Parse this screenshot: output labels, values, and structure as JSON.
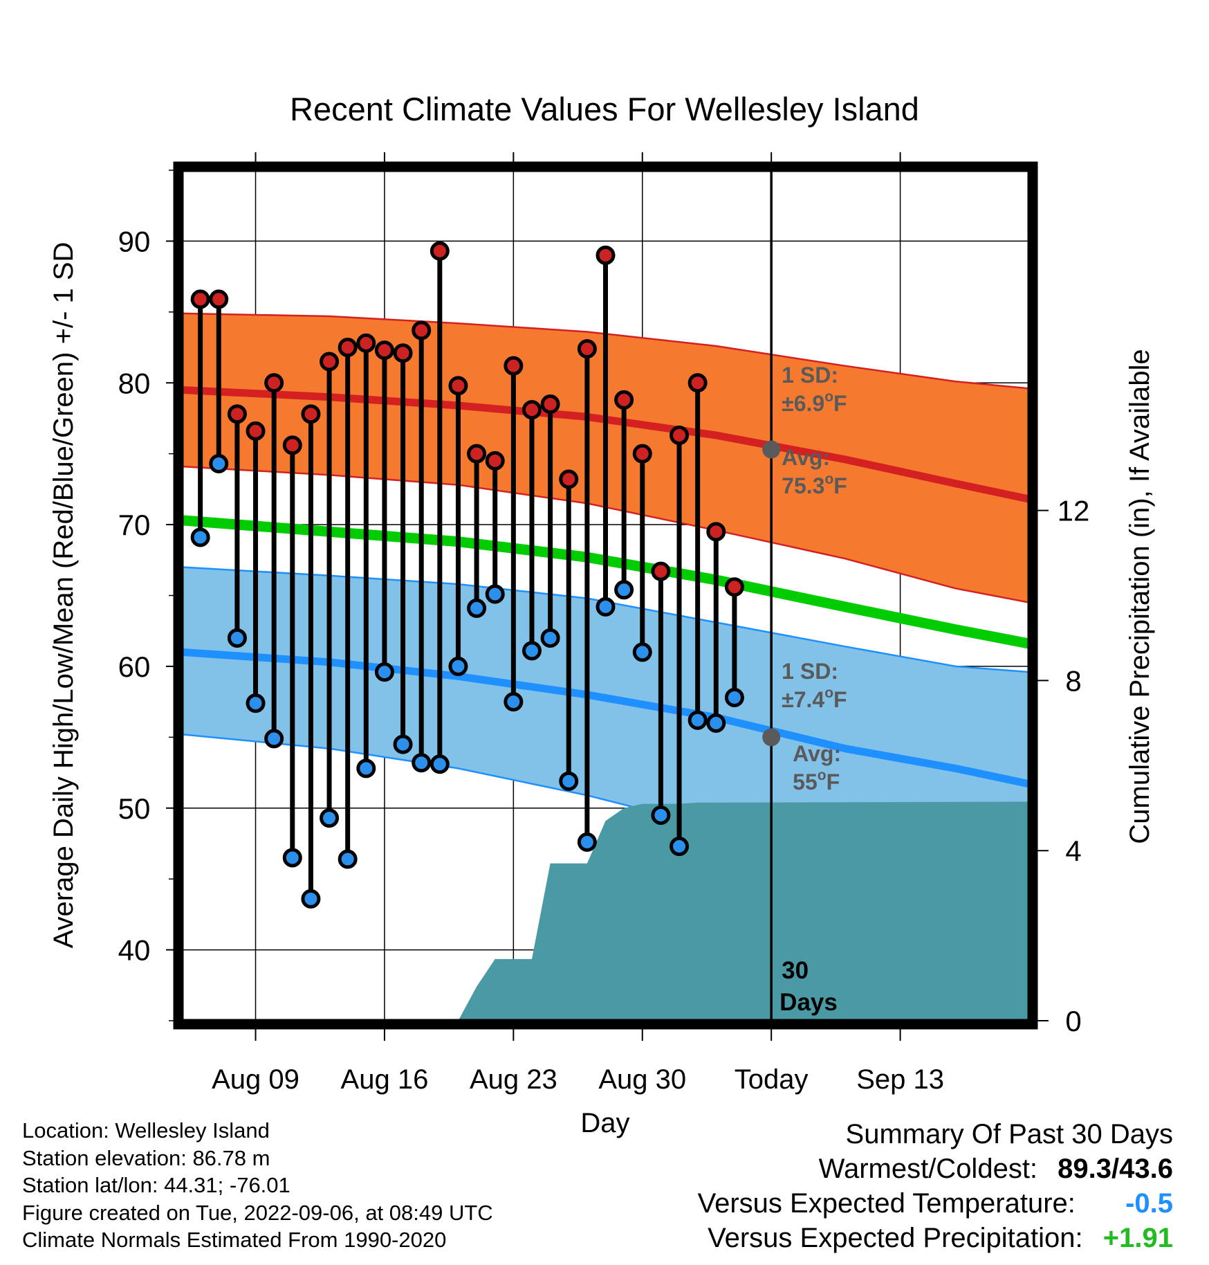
{
  "chart_data": {
    "type": "line",
    "title": "Recent Climate Values For Wellesley Island",
    "xlabel": "Day",
    "ylabel": "Average Daily High/Low/Mean (Red/Blue/Green) +/- 1 SD",
    "y2label": "Cumulative Precipitation (in), If Available",
    "ylim": [
      35,
      95
    ],
    "y2lim": [
      0,
      20
    ],
    "xlim": [
      "2022-08-05",
      "2022-09-20"
    ],
    "yticks": [
      40,
      50,
      60,
      70,
      80,
      90
    ],
    "y2ticks": [
      0,
      4,
      8,
      12
    ],
    "xticks": [
      {
        "date": "2022-08-09",
        "label": "Aug 09"
      },
      {
        "date": "2022-08-16",
        "label": "Aug 16"
      },
      {
        "date": "2022-08-23",
        "label": "Aug 23"
      },
      {
        "date": "2022-08-30",
        "label": "Aug 30"
      },
      {
        "date": "2022-09-06",
        "label": "Today"
      },
      {
        "date": "2022-09-13",
        "label": "Sep 13"
      }
    ],
    "today": "2022-09-06",
    "today_label": [
      "30",
      "Days"
    ],
    "grid": true,
    "colors": {
      "high_band": "#f57a30",
      "high_line": "#d42020",
      "low_band": "#82c1e8",
      "low_line": "#1e90ff",
      "mean_line": "#00cc00",
      "precip": "#4a9aa5",
      "high_marker": "#cc2222",
      "low_marker": "#2a90ec",
      "annotation": "#5a5a5a"
    },
    "normals": {
      "dates": [
        "2022-08-05",
        "2022-08-13",
        "2022-08-20",
        "2022-08-27",
        "2022-09-03",
        "2022-09-10",
        "2022-09-16",
        "2022-09-20"
      ],
      "high_avg": [
        79.5,
        79.0,
        78.4,
        77.6,
        76.3,
        74.6,
        72.9,
        71.8
      ],
      "high_sd_upper": [
        84.9,
        84.7,
        84.2,
        83.6,
        82.6,
        81.2,
        80.1,
        79.6
      ],
      "high_sd_lower": [
        74.1,
        73.5,
        72.8,
        71.5,
        69.6,
        67.6,
        65.5,
        64.5
      ],
      "mean": [
        70.3,
        69.5,
        68.8,
        67.7,
        66.1,
        64.2,
        62.6,
        61.6
      ],
      "low_avg": [
        61.0,
        60.3,
        59.3,
        58.0,
        56.4,
        54.2,
        52.8,
        51.7
      ],
      "low_sd_upper": [
        67.0,
        66.4,
        65.8,
        64.8,
        63.1,
        61.4,
        60.0,
        59.6
      ],
      "low_sd_lower": [
        55.2,
        54.2,
        52.8,
        50.9,
        48.6,
        46.5,
        44.3,
        42.8
      ]
    },
    "series": [
      {
        "name": "High",
        "values": [
          85.9,
          85.9,
          77.8,
          76.6,
          80.0,
          75.6,
          77.8,
          81.5,
          82.5,
          82.8,
          82.3,
          82.1,
          83.7,
          89.3,
          79.8,
          75.0,
          74.5,
          81.2,
          78.1,
          78.5,
          73.2,
          82.4,
          89.0,
          78.8,
          75.0,
          66.7,
          76.3,
          80.0,
          69.5,
          65.6
        ]
      },
      {
        "name": "Low",
        "values": [
          69.1,
          74.3,
          62.0,
          57.4,
          54.9,
          46.5,
          43.6,
          49.3,
          46.4,
          52.8,
          59.6,
          54.5,
          53.2,
          53.1,
          60.0,
          64.1,
          65.1,
          57.5,
          61.1,
          62.0,
          51.9,
          47.6,
          64.2,
          65.4,
          61.0,
          49.5,
          47.3,
          56.2,
          56.0,
          57.8
        ]
      }
    ],
    "dates": [
      "2022-08-06",
      "2022-08-07",
      "2022-08-08",
      "2022-08-09",
      "2022-08-10",
      "2022-08-11",
      "2022-08-12",
      "2022-08-13",
      "2022-08-14",
      "2022-08-15",
      "2022-08-16",
      "2022-08-17",
      "2022-08-18",
      "2022-08-19",
      "2022-08-20",
      "2022-08-21",
      "2022-08-22",
      "2022-08-23",
      "2022-08-24",
      "2022-08-25",
      "2022-08-26",
      "2022-08-27",
      "2022-08-28",
      "2022-08-29",
      "2022-08-30",
      "2022-08-31",
      "2022-09-01",
      "2022-09-02",
      "2022-09-03",
      "2022-09-04"
    ],
    "precip_cumulative": {
      "dates": [
        "2022-08-18",
        "2022-08-19",
        "2022-08-20",
        "2022-08-21",
        "2022-08-22",
        "2022-08-23",
        "2022-08-24",
        "2022-08-25",
        "2022-08-26",
        "2022-08-27",
        "2022-08-28",
        "2022-08-29",
        "2022-08-30",
        "2022-08-31",
        "2022-09-01",
        "2022-09-02",
        "2022-09-03",
        "2022-09-20"
      ],
      "values": [
        0,
        0,
        0,
        0.8,
        1.45,
        1.45,
        1.45,
        3.7,
        3.7,
        3.7,
        4.7,
        5.0,
        5.1,
        5.1,
        5.1,
        5.13,
        5.13,
        5.15
      ]
    },
    "annotations": {
      "high": {
        "sd_line1": "1 SD:",
        "sd_line2": "±6.9",
        "avg_line1": "Avg:",
        "avg_line2": "75.3",
        "unit": "F",
        "deg": "o",
        "avg_value": 75.3
      },
      "low": {
        "sd_line1": "1 SD:",
        "sd_line2": "±7.4",
        "avg_line1": "Avg:",
        "avg_line2": "55",
        "unit": "F",
        "deg": "o",
        "avg_value": 55.0
      }
    }
  },
  "info": {
    "location": "Location: Wellesley Island",
    "elevation": "Station elevation: 86.78 m",
    "latlon": "Station lat/lon: 44.31; -76.01",
    "created": "Figure created on Tue, 2022-09-06, at 08:49 UTC",
    "normals": "Climate Normals Estimated From 1990-2020"
  },
  "summary": {
    "title": "Summary Of Past 30 Days",
    "warmest_label": "Warmest/Coldest:",
    "warmest_value": "89.3/43.6",
    "temp_label": "Versus Expected Temperature:",
    "temp_value": "-0.5",
    "precip_label": "Versus Expected Precipitation:",
    "precip_value": "+1.91"
  }
}
